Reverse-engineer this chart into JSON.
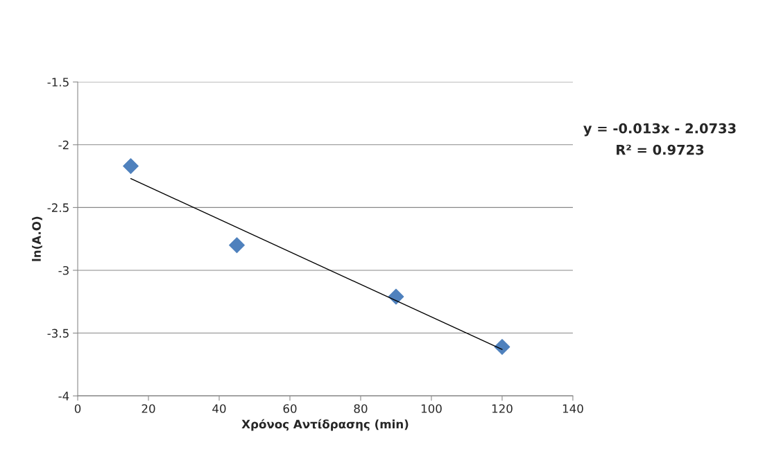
{
  "chart_data": {
    "type": "scatter",
    "xlabel": "Χρόνος Αντίδρασης (min)",
    "ylabel": "ln(A.O)",
    "series": [
      {
        "color": "#4f81bd",
        "marker": "diamond",
        "x": [
          15,
          45,
          90,
          120
        ],
        "values": [
          -2.17,
          -2.8,
          -3.21,
          -3.61
        ]
      },
      {
        "type": "line",
        "color": "#000000",
        "marker": "none",
        "line_style": "solid",
        "x": [
          15,
          120
        ],
        "values": [
          -2.27,
          -3.63
        ]
      }
    ],
    "annotations": [
      "y = -0.013x - 2.0733",
      "R² = 0.9723"
    ],
    "xlim": [
      0,
      140
    ],
    "xticks": [
      0,
      20,
      40,
      60,
      80,
      100,
      120,
      140
    ],
    "ylim": [
      -4,
      -1.5
    ],
    "yticks": [
      -4,
      -3.5,
      -3,
      -2.5,
      -2,
      -1.5
    ],
    "grid": "y",
    "legend": false
  }
}
